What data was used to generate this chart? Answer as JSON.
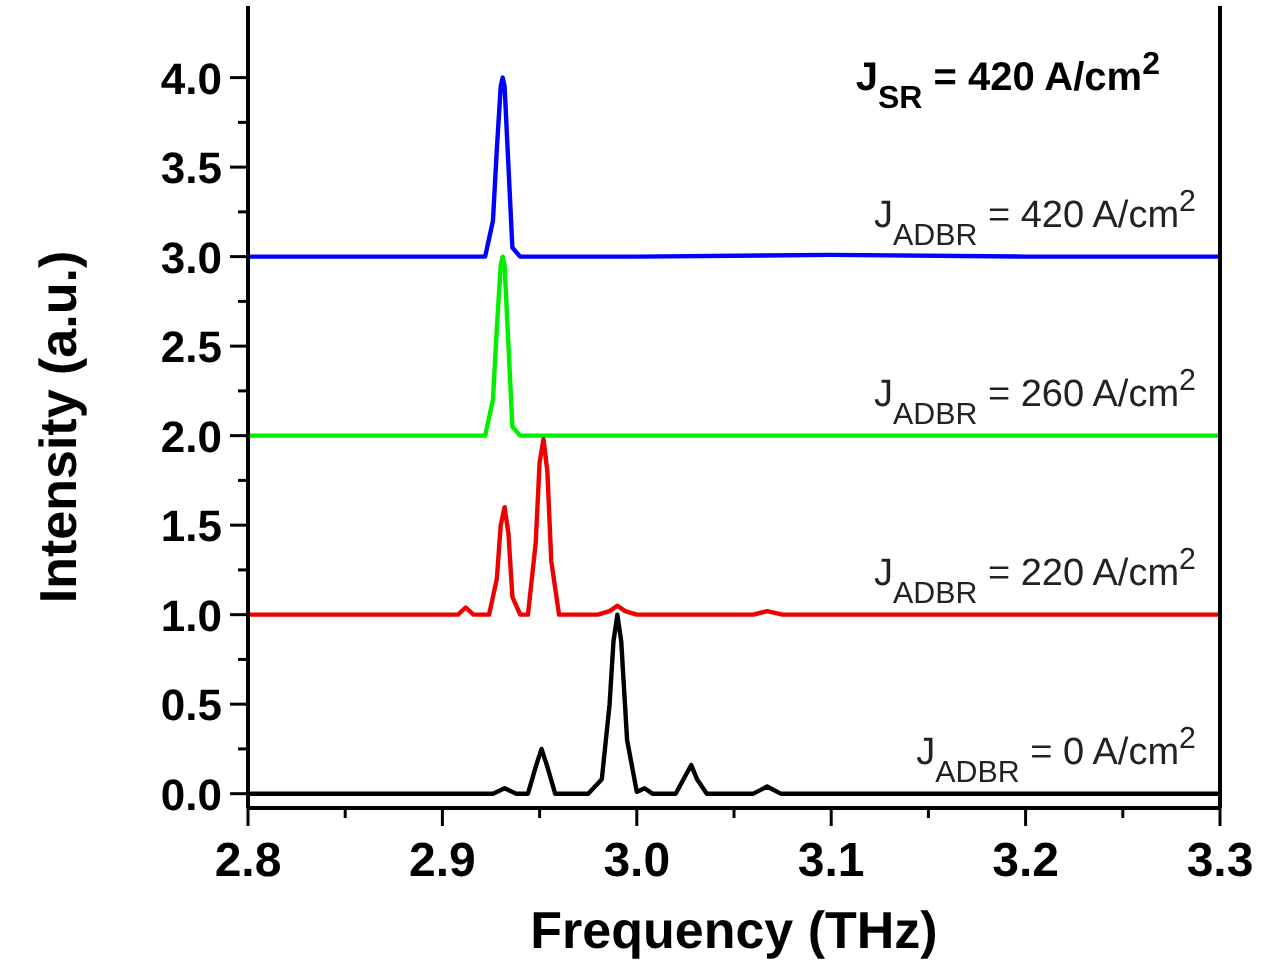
{
  "chart_data": {
    "type": "line",
    "xlabel": "Frequency (THz)",
    "ylabel": "Intensity (a.u.)",
    "annotations": [
      "J$_{SR}$ = 420 A/cm$^{2}$"
    ],
    "xlim": [
      2.8,
      3.3
    ],
    "ylim": [
      -0.08,
      4.4
    ],
    "xticks": [
      {
        "value": 2.8,
        "label": "2.8"
      },
      {
        "value": 2.85,
        "label": null
      },
      {
        "value": 2.9,
        "label": "2.9"
      },
      {
        "value": 2.95,
        "label": null
      },
      {
        "value": 3.0,
        "label": "3.0"
      },
      {
        "value": 3.05,
        "label": null
      },
      {
        "value": 3.1,
        "label": "3.1"
      },
      {
        "value": 3.15,
        "label": null
      },
      {
        "value": 3.2,
        "label": "3.2"
      },
      {
        "value": 3.25,
        "label": null
      },
      {
        "value": 3.3,
        "label": "3.3"
      }
    ],
    "yticks": [
      {
        "value": 0,
        "label": "0.0"
      },
      {
        "value": 0.25,
        "label": null
      },
      {
        "value": 0.5,
        "label": "0.5"
      },
      {
        "value": 0.75,
        "label": null
      },
      {
        "value": 1,
        "label": "1.0"
      },
      {
        "value": 1.25,
        "label": null
      },
      {
        "value": 1.5,
        "label": "1.5"
      },
      {
        "value": 1.75,
        "label": null
      },
      {
        "value": 2,
        "label": "2.0"
      },
      {
        "value": 2.25,
        "label": null
      },
      {
        "value": 2.5,
        "label": "2.5"
      },
      {
        "value": 2.75,
        "label": null
      },
      {
        "value": 3,
        "label": "3.0"
      },
      {
        "value": 3.25,
        "label": null
      },
      {
        "value": 3.5,
        "label": "3.5"
      },
      {
        "value": 3.75,
        "label": null
      },
      {
        "value": 4,
        "label": "4.0"
      }
    ],
    "grid": false,
    "marker": "none",
    "line_style": "solid",
    "series": [
      {
        "name": "J$_{ADBR}$ = 420 A/cm$^{2}$",
        "color": "#0000ff",
        "x": [
          2.8,
          2.9,
          2.922,
          2.926,
          2.928,
          2.93,
          2.931,
          2.932,
          2.934,
          2.936,
          2.94,
          3.0,
          3.1,
          3.2,
          3.3
        ],
        "values": [
          3,
          3,
          3,
          3.2,
          3.6,
          3.95,
          4.0,
          3.95,
          3.5,
          3.05,
          3,
          3,
          3.01,
          3,
          3
        ]
      },
      {
        "name": "J$_{ADBR}$ = 260 A/cm$^{2}$",
        "color": "#00ee00",
        "x": [
          2.8,
          2.9,
          2.922,
          2.926,
          2.928,
          2.93,
          2.931,
          2.932,
          2.934,
          2.936,
          2.94,
          3.0,
          3.1,
          3.2,
          3.3
        ],
        "values": [
          2,
          2,
          2,
          2.2,
          2.6,
          2.95,
          3.0,
          2.95,
          2.5,
          2.05,
          2,
          2,
          2,
          2,
          2
        ]
      },
      {
        "name": "J$_{ADBR}$ = 220 A/cm$^{2}$",
        "color": "#ee0000",
        "x": [
          2.8,
          2.9,
          2.908,
          2.912,
          2.916,
          2.924,
          2.928,
          2.93,
          2.932,
          2.934,
          2.936,
          2.94,
          2.944,
          2.948,
          2.95,
          2.952,
          2.954,
          2.956,
          2.96,
          2.98,
          2.986,
          2.99,
          2.994,
          3.0,
          3.06,
          3.067,
          3.075,
          3.3
        ],
        "values": [
          1,
          1,
          1,
          1.04,
          1,
          1,
          1.2,
          1.5,
          1.6,
          1.45,
          1.1,
          1,
          1,
          1.4,
          1.85,
          1.98,
          1.8,
          1.3,
          1,
          1,
          1.02,
          1.05,
          1.02,
          1,
          1,
          1.02,
          1,
          1
        ]
      },
      {
        "name": "J$_{ADBR}$ = 0 A/cm$^{2}$",
        "color": "#000000",
        "x": [
          2.8,
          2.9,
          2.926,
          2.932,
          2.938,
          2.944,
          2.948,
          2.951,
          2.954,
          2.958,
          2.975,
          2.982,
          2.986,
          2.988,
          2.99,
          2.992,
          2.995,
          3.0,
          3.004,
          3.008,
          3.02,
          3.025,
          3.028,
          3.031,
          3.036,
          3.06,
          3.067,
          3.074,
          3.1,
          3.3
        ],
        "values": [
          0,
          0,
          0,
          0.03,
          0,
          0,
          0.15,
          0.25,
          0.15,
          0,
          0,
          0.08,
          0.5,
          0.85,
          1.0,
          0.85,
          0.3,
          0.01,
          0.03,
          0,
          0,
          0.1,
          0.16,
          0.08,
          0,
          0,
          0.04,
          0,
          0,
          0
        ]
      }
    ]
  }
}
